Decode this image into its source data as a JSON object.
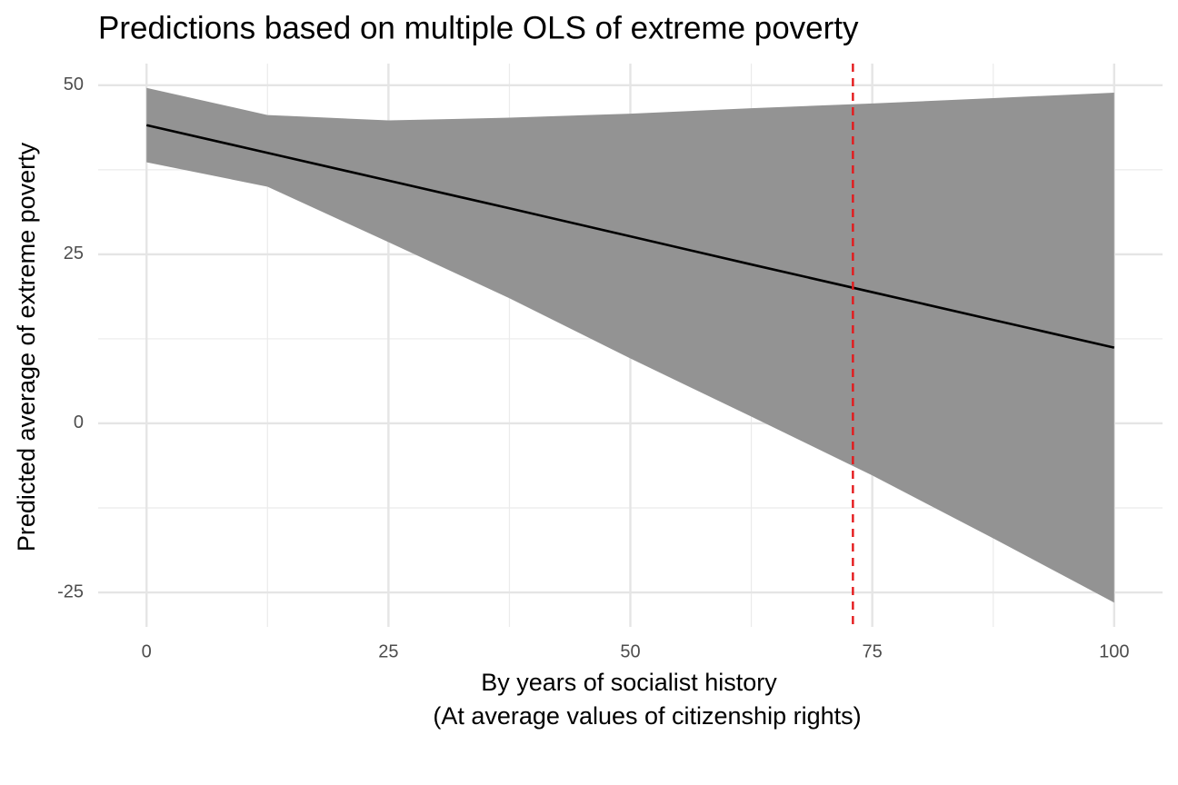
{
  "chart_data": {
    "type": "ribbon-line",
    "title": "Predictions based on multiple OLS of extreme poverty",
    "xlabel": [
      "By years of socialist history",
      "(At average values of citizenship rights)"
    ],
    "ylabel": "Predicted average of extreme poverty",
    "x": [
      0,
      12.5,
      25,
      37.5,
      50,
      62.5,
      75,
      87.5,
      100
    ],
    "series": [
      {
        "color": "#000000",
        "ribbon_color": "#939393",
        "values": [
          44.1,
          40.0,
          35.9,
          31.8,
          27.65,
          23.5,
          19.4,
          15.3,
          11.2
        ],
        "lower": [
          38.6,
          35.0,
          26.8,
          18.5,
          9.6,
          1.0,
          -7.7,
          -17.0,
          -26.5
        ],
        "upper": [
          49.6,
          45.6,
          44.8,
          45.2,
          45.8,
          46.6,
          47.3,
          48.1,
          48.9
        ]
      }
    ],
    "vline": {
      "x": 73,
      "color": "#e41a1c"
    },
    "xlim": [
      -5,
      105
    ],
    "ylim": [
      -30.1,
      53.2
    ],
    "xticks": [
      0,
      25,
      50,
      75,
      100
    ],
    "yticks": [
      -25,
      0,
      25,
      50
    ],
    "xminor": [
      12.5,
      37.5,
      62.5,
      87.5
    ],
    "yminor": [
      -12.5,
      12.5,
      37.5
    ],
    "grid": true
  }
}
